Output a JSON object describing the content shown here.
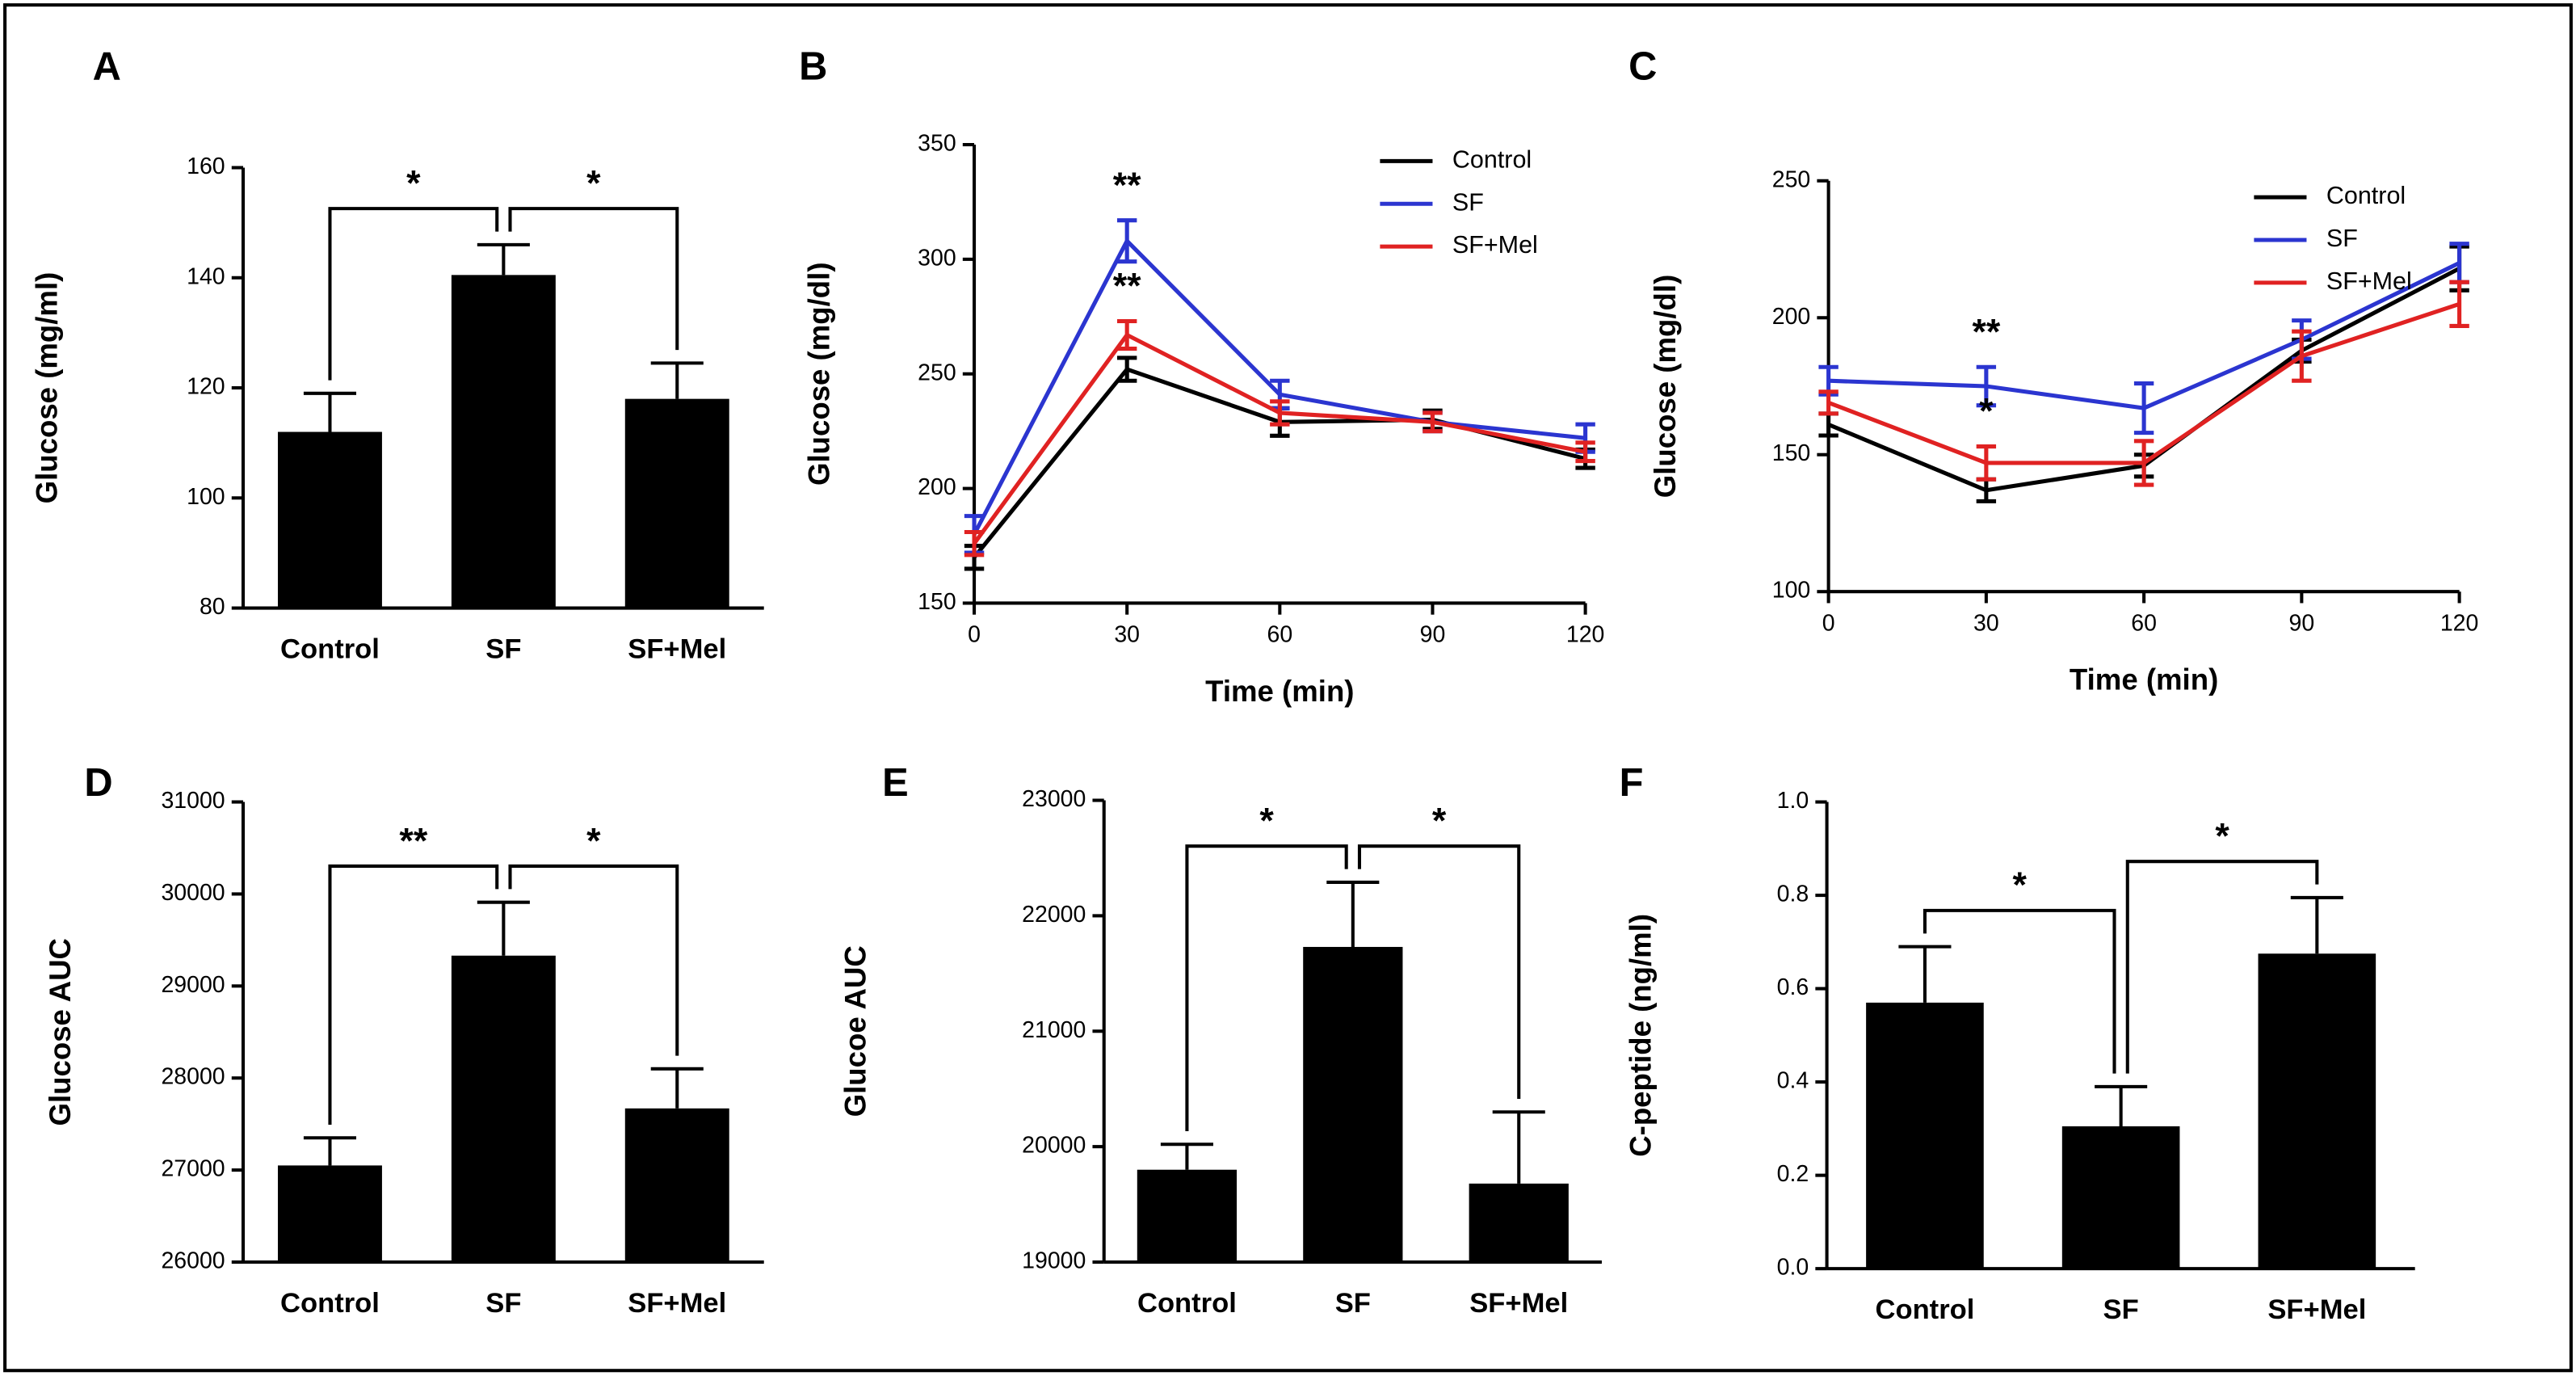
{
  "chart_data": [
    {
      "type": "bar",
      "panel": "A",
      "ylabel": "Glucose (mg/ml)",
      "categories": [
        "Control",
        "SF",
        "SF+Mel"
      ],
      "values": [
        112,
        140.5,
        118
      ],
      "errors": [
        7,
        5.5,
        6.5
      ],
      "color": "#000000",
      "ylim": [
        80,
        160
      ],
      "yticks": [
        80,
        100,
        120,
        140,
        160
      ],
      "significance": [
        {
          "label": "*",
          "pair": [
            0,
            1
          ]
        },
        {
          "label": "*",
          "pair": [
            1,
            2
          ]
        }
      ]
    },
    {
      "type": "line",
      "panel": "B",
      "ylabel": "Glucose (mg/dl)",
      "xlabel": "Time (min)",
      "x": [
        0,
        30,
        60,
        90,
        120
      ],
      "xlim": [
        0,
        120
      ],
      "xticks": [
        0,
        30,
        60,
        90,
        120
      ],
      "ylim": [
        150,
        350
      ],
      "yticks": [
        150,
        200,
        250,
        300,
        350
      ],
      "legend": "upper right",
      "series": [
        {
          "name": "Control",
          "color": "#000000",
          "values": [
            170,
            252,
            229,
            230,
            213
          ],
          "errors": [
            5,
            5,
            6,
            4,
            4
          ]
        },
        {
          "name": "SF",
          "color": "#2b35d0",
          "values": [
            180,
            308,
            241,
            229,
            222
          ],
          "errors": [
            8,
            9,
            6,
            4,
            6
          ],
          "point_labels": [
            null,
            "**",
            null,
            null,
            null
          ]
        },
        {
          "name": "SF+Mel",
          "color": "#e02222",
          "values": [
            176,
            267,
            233,
            229,
            216
          ],
          "errors": [
            5,
            6,
            5,
            4,
            4
          ],
          "point_labels": [
            null,
            "**",
            null,
            null,
            null
          ]
        }
      ]
    },
    {
      "type": "line",
      "panel": "C",
      "ylabel": "Glucose (mg/dl)",
      "xlabel": "Time (min)",
      "x": [
        0,
        30,
        60,
        90,
        120
      ],
      "xlim": [
        0,
        120
      ],
      "xticks": [
        0,
        30,
        60,
        90,
        120
      ],
      "ylim": [
        100,
        250
      ],
      "yticks": [
        100,
        150,
        200,
        250
      ],
      "legend": "upper right",
      "series": [
        {
          "name": "Control",
          "color": "#000000",
          "values": [
            161,
            137,
            146,
            188,
            218
          ],
          "errors": [
            4,
            4,
            4,
            4,
            8
          ]
        },
        {
          "name": "SF",
          "color": "#2b35d0",
          "values": [
            177,
            175,
            167,
            192,
            220
          ],
          "errors": [
            5,
            7,
            9,
            7,
            7
          ],
          "point_labels": [
            null,
            "**",
            null,
            null,
            null
          ]
        },
        {
          "name": "SF+Mel",
          "color": "#e02222",
          "values": [
            169,
            147,
            147,
            186,
            205
          ],
          "errors": [
            4,
            6,
            8,
            9,
            8
          ],
          "point_labels": [
            null,
            "*",
            null,
            null,
            null
          ]
        }
      ]
    },
    {
      "type": "bar",
      "panel": "D",
      "ylabel": "Glucose AUC",
      "categories": [
        "Control",
        "SF",
        "SF+Mel"
      ],
      "values": [
        27050,
        29330,
        27670
      ],
      "errors": [
        300,
        580,
        430
      ],
      "color": "#000000",
      "ylim": [
        26000,
        31000
      ],
      "yticks": [
        26000,
        27000,
        28000,
        29000,
        30000,
        31000
      ],
      "significance": [
        {
          "label": "**",
          "pair": [
            0,
            1
          ]
        },
        {
          "label": "*",
          "pair": [
            1,
            2
          ]
        }
      ]
    },
    {
      "type": "bar",
      "panel": "E",
      "ylabel": "Glucoe AUC",
      "categories": [
        "Control",
        "SF",
        "SF+Mel"
      ],
      "values": [
        19800,
        21730,
        19680
      ],
      "errors": [
        220,
        560,
        620
      ],
      "color": "#000000",
      "ylim": [
        19000,
        23000
      ],
      "yticks": [
        19000,
        20000,
        21000,
        22000,
        23000
      ],
      "significance": [
        {
          "label": "*",
          "pair": [
            0,
            1
          ]
        },
        {
          "label": "*",
          "pair": [
            1,
            2
          ]
        }
      ]
    },
    {
      "type": "bar",
      "panel": "F",
      "ylabel": "C-peptide (ng/ml)",
      "categories": [
        "Control",
        "SF",
        "SF+Mel"
      ],
      "values": [
        0.57,
        0.305,
        0.675
      ],
      "errors": [
        0.12,
        0.085,
        0.12
      ],
      "color": "#000000",
      "ylim": [
        0,
        1
      ],
      "yticks": [
        {
          "value": 0,
          "label": "0.0"
        },
        0.2,
        0.4,
        0.6,
        0.8,
        {
          "value": 1,
          "label": "1.0"
        }
      ],
      "significance": [
        {
          "label": "*",
          "pair": [
            0,
            1
          ]
        },
        {
          "label": "*",
          "pair": [
            1,
            2
          ]
        }
      ]
    }
  ]
}
